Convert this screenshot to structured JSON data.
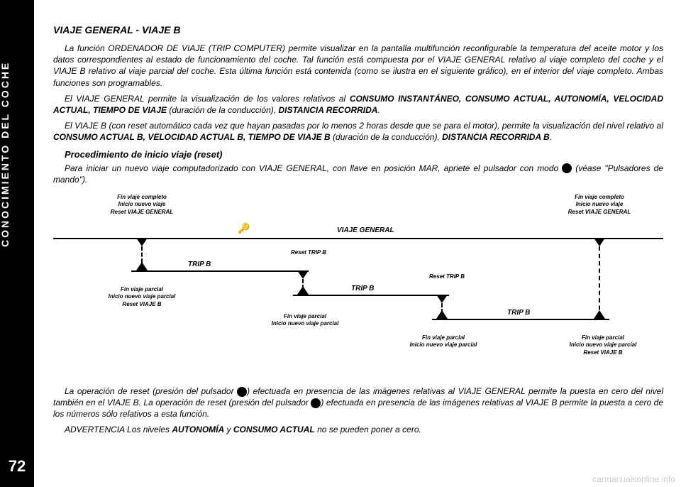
{
  "sidebar": {
    "label": "CONOCIMIENTO DEL COCHE",
    "page": "72"
  },
  "title": "VIAJE GENERAL - VIAJE B",
  "para1": "La función ORDENADOR DE VIAJE (TRIP COMPUTER) permite visualizar en la pantalla multifunción reconfigurable la temperatura del aceite motor y los datos correspondientes al estado de funcionamiento del coche. Tal función está compuesta por el VIAJE GENERAL relativo al viaje completo del coche y el VIAJE B relativo al viaje parcial del coche. Esta última función está contenida (como se ilustra en el siguiente gráfico), en el interior del viaje completo. Ambas funciones son programables.",
  "para2_a": "El VIAJE GENERAL permite la visualización de los valores relativos al ",
  "para2_caps": "CONSUMO INSTANTÁNEO, CONSUMO ACTUAL, AUTONOMÍA, VELOCIDAD ACTUAL, TIEMPO DE VIAJE",
  "para2_b": " (duración de la conducción), ",
  "para2_caps2": "DISTANCIA RECORRIDA",
  "para2_c": ".",
  "para3_a": "El VIAJE B (con reset automático cada vez que hayan pasadas por lo menos 2 horas desde que se para el motor), permite la visualización del nivel relativo al ",
  "para3_caps": "CONSUMO ACTUAL B, VELOCIDAD ACTUAL B, TIEMPO DE VIAJE B",
  "para3_b": " (duración de la conducción), ",
  "para3_caps2": "DISTANCIA RECORRIDA B",
  "para3_c": ".",
  "subtitle": "Procedimiento de inicio viaje (reset)",
  "para4_a": "Para iniciar un nuevo viaje computadorizado con VIAJE GENERAL, con llave en posición MAR, apriete el pulsador con modo ",
  "para4_b": " (véase \"Pulsadores de mando\").",
  "diagram": {
    "label_top_left": "Fin viaje completo\nInicio nuevo viaje\nReset VIAJE GENERAL",
    "label_top_right": "Fin viaje completo\nInicio nuevo viaje\nReset VIAJE GENERAL",
    "viaje_general": "VIAJE GENERAL",
    "trip_b": "TRIP B",
    "reset_trip_b": "Reset TRIP B",
    "label_bottom1": "Fin viaje parcial\nInicio nuevo viaje parcial\nReset VIAJE B",
    "label_bottom2": "Fin viaje parcial\nInicio nuevo viaje parcial",
    "label_bottom3": "Fin viaje parcial\nInicio nuevo viaje parcial",
    "label_bottom4": "Fin viaje parcial\nInicio nuevo viaje parcial\nReset VIAJE B"
  },
  "para5_a": "La operación de reset (presión del pulsador ",
  "para5_b": ") efectuada en presencia de las imágenes relativas al VIAJE GENERAL permite la puesta en cero del nivel también en el VIAJE B. La operación de reset (presión del pulsador ",
  "para5_c": ") efectuada en presencia de las imágenes relativas al VIAJE B permite la puesta a cero de los números sólo relativos a esta función.",
  "warning_a": "ADVERTENCIA Los niveles ",
  "warning_caps": "AUTONOMÍA",
  "warning_b": " y ",
  "warning_caps2": "CONSUMO ACTUAL",
  "warning_c": " no se pueden poner a cero.",
  "watermark": "carmanualsonline.info",
  "icon_m": "M"
}
